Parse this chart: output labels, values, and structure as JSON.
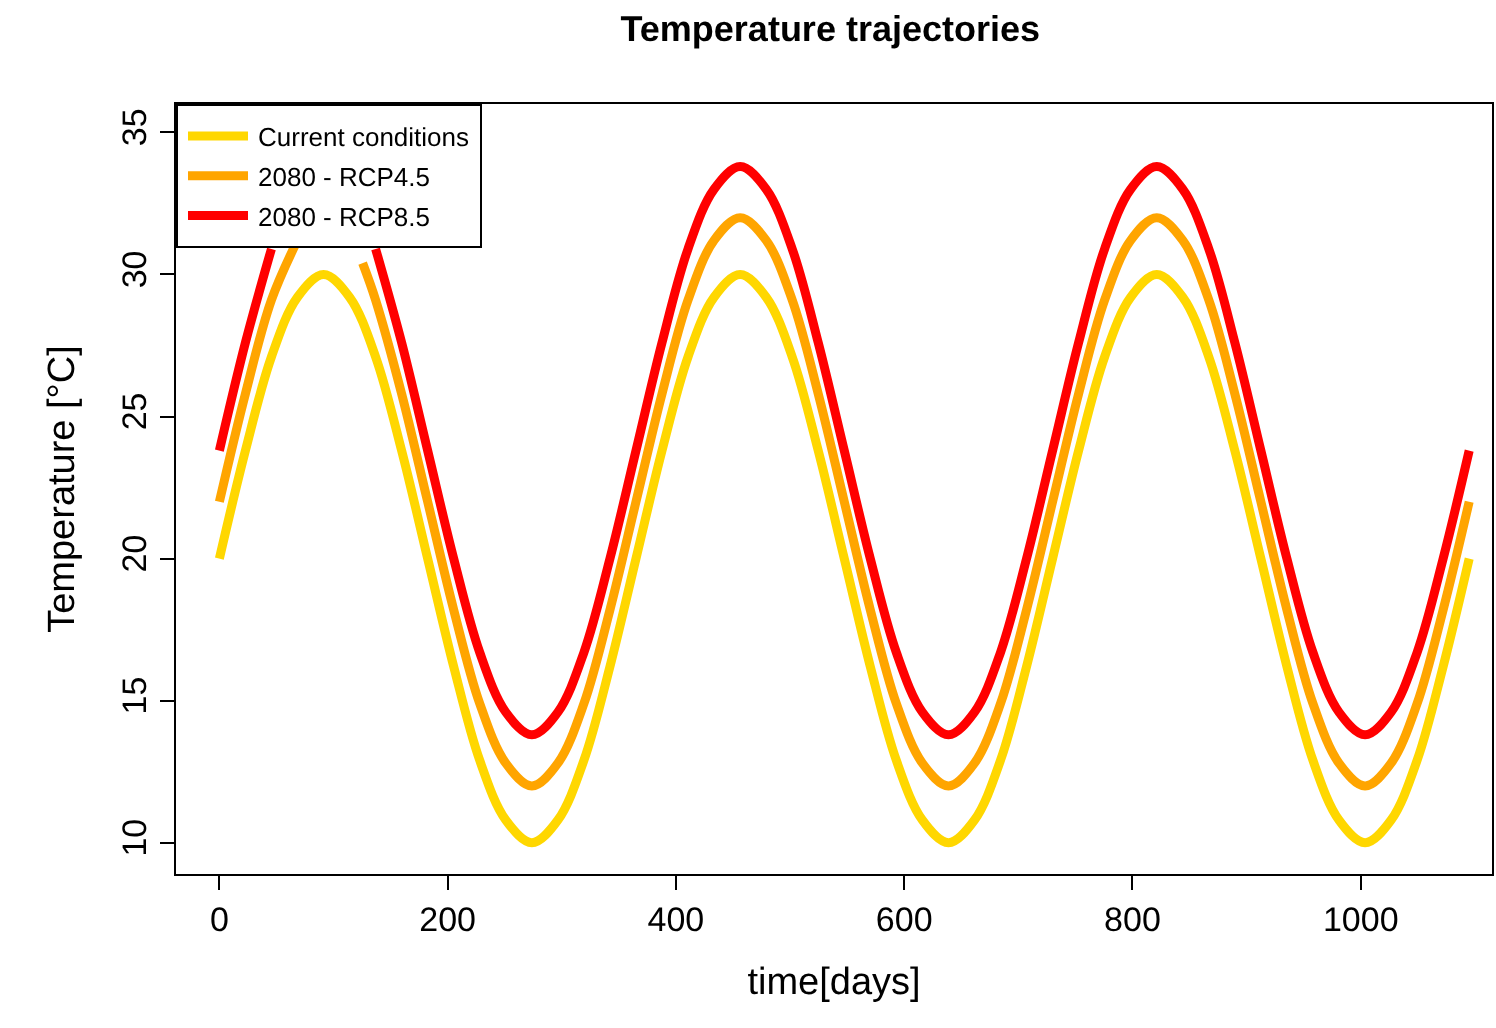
{
  "chart_data": {
    "type": "line",
    "title": "Temperature trajectories",
    "xlabel": "time[days]",
    "ylabel": "Temperature [°C]",
    "x": [
      0,
      22.8,
      45.6,
      68.4,
      91.3,
      114.1,
      136.9,
      159.7,
      182.5,
      205.3,
      228.1,
      250.9,
      273.8,
      296.6,
      319.4,
      342.2,
      365,
      387.8,
      410.6,
      433.4,
      456.3,
      479.1,
      501.9,
      524.7,
      547.5,
      570.3,
      593.1,
      615.9,
      638.8,
      661.6,
      684.4,
      707.2,
      730,
      752.8,
      775.6,
      798.4,
      821.3,
      844.1,
      866.9,
      889.7,
      912.5,
      935.3,
      958.1,
      980.9,
      1003.8,
      1026.6,
      1049.4,
      1072.2,
      1095
    ],
    "series": [
      {
        "name": "Current conditions",
        "color": "#ffd700",
        "values": [
          20,
          23.8,
          27.1,
          29.2,
          30,
          29.2,
          27.1,
          23.8,
          20,
          16.2,
          12.9,
          10.8,
          10,
          10.8,
          12.9,
          16.2,
          20,
          23.8,
          27.1,
          29.2,
          30,
          29.2,
          27.1,
          23.8,
          20,
          16.2,
          12.9,
          10.8,
          10,
          10.8,
          12.9,
          16.2,
          20,
          23.8,
          27.1,
          29.2,
          30,
          29.2,
          27.1,
          23.8,
          20,
          16.2,
          12.9,
          10.8,
          10,
          10.8,
          12.9,
          16.2,
          20
        ]
      },
      {
        "name": "2080 - RCP4.5",
        "color": "#ffa500",
        "x": [
          0,
          22.8,
          45.6,
          68.4,
          91.3,
          114.1,
          125.5,
          136.9,
          159.7,
          182.5,
          205.3,
          228.1,
          250.9,
          273.8,
          296.6,
          319.4,
          342.2,
          365,
          387.8,
          410.6,
          433.4,
          456.3,
          479.1,
          501.9,
          524.7,
          547.5,
          570.3,
          593.1,
          615.9,
          638.8,
          661.6,
          684.4,
          707.2,
          730,
          752.8,
          775.6,
          798.4,
          821.3,
          844.1,
          866.9,
          889.7,
          912.5,
          935.3,
          958.1,
          980.9,
          1003.8,
          1026.6,
          1049.4,
          1072.2,
          1095
        ],
        "values": [
          22,
          25.8,
          29.1,
          31.2,
          null,
          null,
          30.4,
          29.1,
          25.8,
          22,
          18.2,
          14.9,
          12.8,
          12,
          12.8,
          14.9,
          18.2,
          22,
          25.8,
          29.1,
          31.2,
          32,
          31.2,
          29.1,
          25.8,
          22,
          18.2,
          14.9,
          12.8,
          12,
          12.8,
          14.9,
          18.2,
          22,
          25.8,
          29.1,
          31.2,
          32,
          31.2,
          29.1,
          25.8,
          22,
          18.2,
          14.9,
          12.8,
          12,
          12.8,
          14.9,
          18.2,
          22
        ]
      },
      {
        "name": "2080 - RCP8.5",
        "color": "#ff0000",
        "values": [
          23.8,
          27.6,
          30.9,
          null,
          null,
          null,
          30.9,
          27.6,
          23.8,
          20,
          16.7,
          14.6,
          13.8,
          14.6,
          16.7,
          20,
          23.8,
          27.6,
          30.9,
          33,
          33.8,
          33,
          30.9,
          27.6,
          23.8,
          20,
          16.7,
          14.6,
          13.8,
          14.6,
          16.7,
          20,
          23.8,
          27.6,
          30.9,
          33,
          33.8,
          33,
          30.9,
          27.6,
          23.8,
          20,
          16.7,
          14.6,
          13.8,
          14.6,
          16.7,
          20,
          23.8
        ]
      }
    ],
    "xlim": [
      -38,
      1115
    ],
    "ylim": [
      8.9,
      36
    ],
    "xticks": [
      0,
      200,
      400,
      600,
      800,
      1000
    ],
    "yticks": [
      10,
      15,
      20,
      25,
      30,
      35
    ],
    "legend": "top left",
    "marker": "none",
    "line_style": "solid"
  }
}
